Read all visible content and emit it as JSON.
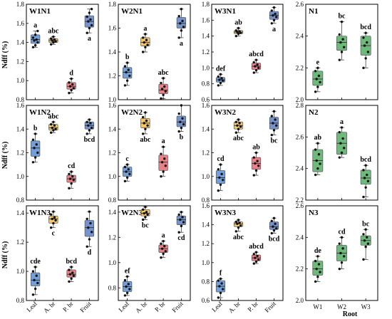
{
  "figure": {
    "y_axis_label": "Ndff (%)",
    "x_axis_label": "Root",
    "colors": {
      "Leaf": "#3d7cc9",
      "A. br": "#f0b030",
      "P. br": "#e0505a",
      "Fruit": "#3e6ab8",
      "W1": "#35a048",
      "W2": "#35a048",
      "W3": "#35a048"
    }
  },
  "chart_data": [
    {
      "type": "box",
      "title": "W1N1",
      "categories": [
        "Leaf",
        "A. br",
        "P. br",
        "Fruit"
      ],
      "ylim": [
        0.8,
        1.8
      ],
      "yticks": [
        "0.8",
        "1.0",
        "1.2",
        "1.4",
        "1.6",
        "1.8"
      ],
      "boxes": [
        {
          "q1": 1.39,
          "median": 1.43,
          "q3": 1.48,
          "whisker_low": 1.35,
          "whisker_high": 1.52,
          "letters": "a",
          "points": [
            1.35,
            1.37,
            1.4,
            1.42,
            1.43,
            1.45,
            1.48,
            1.52
          ]
        },
        {
          "q1": 1.4,
          "median": 1.42,
          "q3": 1.44,
          "whisker_low": 1.38,
          "whisker_high": 1.46,
          "letters": "abc",
          "points": [
            1.38,
            1.4,
            1.41,
            1.42,
            1.43,
            1.44,
            1.46
          ]
        },
        {
          "q1": 0.91,
          "median": 0.94,
          "q3": 0.98,
          "whisker_low": 0.87,
          "whisker_high": 1.02,
          "letters": "d",
          "points": [
            0.87,
            0.9,
            0.92,
            0.94,
            0.96,
            0.98,
            1.02
          ]
        },
        {
          "q1": 1.56,
          "median": 1.62,
          "q3": 1.68,
          "whisker_low": 1.5,
          "whisker_high": 1.75,
          "letters": "a",
          "points": [
            1.5,
            1.55,
            1.58,
            1.62,
            1.64,
            1.67,
            1.71,
            1.75
          ]
        }
      ]
    },
    {
      "type": "box",
      "title": "W2N1",
      "categories": [
        "Leaf",
        "A. br",
        "P. br",
        "Fruit"
      ],
      "ylim": [
        1.0,
        1.8
      ],
      "yticks": [
        "1.0",
        "1.2",
        "1.4",
        "1.6",
        "1.8"
      ],
      "boxes": [
        {
          "q1": 1.18,
          "median": 1.23,
          "q3": 1.27,
          "whisker_low": 1.12,
          "whisker_high": 1.31,
          "letters": "b",
          "points": [
            1.12,
            1.16,
            1.2,
            1.23,
            1.25,
            1.28,
            1.31
          ]
        },
        {
          "q1": 1.45,
          "median": 1.48,
          "q3": 1.52,
          "whisker_low": 1.4,
          "whisker_high": 1.55,
          "letters": "a",
          "points": [
            1.4,
            1.44,
            1.46,
            1.48,
            1.5,
            1.52,
            1.55
          ]
        },
        {
          "q1": 1.05,
          "median": 1.08,
          "q3": 1.13,
          "whisker_low": 1.01,
          "whisker_high": 1.18,
          "letters": "abc",
          "points": [
            1.01,
            1.04,
            1.07,
            1.09,
            1.11,
            1.14,
            1.18
          ]
        },
        {
          "q1": 1.6,
          "median": 1.64,
          "q3": 1.69,
          "whisker_low": 1.52,
          "whisker_high": 1.76,
          "letters": "a",
          "points": [
            1.52,
            1.58,
            1.61,
            1.64,
            1.66,
            1.7,
            1.76
          ]
        }
      ]
    },
    {
      "type": "box",
      "title": "W3N1",
      "categories": [
        "Leaf",
        "A. br",
        "P. br",
        "Fruit"
      ],
      "ylim": [
        0.6,
        1.8
      ],
      "yticks": [
        "0.6",
        "0.8",
        "1.0",
        "1.2",
        "1.4",
        "1.6",
        "1.8"
      ],
      "boxes": [
        {
          "q1": 0.82,
          "median": 0.85,
          "q3": 0.88,
          "whisker_low": 0.78,
          "whisker_high": 0.92,
          "letters": "def",
          "points": [
            0.78,
            0.81,
            0.84,
            0.85,
            0.87,
            0.89,
            0.92
          ]
        },
        {
          "q1": 1.43,
          "median": 1.45,
          "q3": 1.47,
          "whisker_low": 1.4,
          "whisker_high": 1.5,
          "letters": "ab",
          "points": [
            1.4,
            1.43,
            1.44,
            1.45,
            1.46,
            1.47,
            1.5
          ]
        },
        {
          "q1": 0.98,
          "median": 1.02,
          "q3": 1.06,
          "whisker_low": 0.94,
          "whisker_high": 1.1,
          "letters": "abcd",
          "points": [
            0.94,
            0.97,
            1.0,
            1.02,
            1.04,
            1.07,
            1.1
          ]
        },
        {
          "q1": 1.61,
          "median": 1.66,
          "q3": 1.71,
          "whisker_low": 1.56,
          "whisker_high": 1.76,
          "letters": "a",
          "points": [
            1.56,
            1.6,
            1.64,
            1.66,
            1.68,
            1.72,
            1.76
          ]
        }
      ]
    },
    {
      "type": "box",
      "title": "N1",
      "categories": [
        "W1",
        "W2",
        "W3"
      ],
      "ylim": [
        2.0,
        2.6
      ],
      "yticks": [
        "2.0",
        "2.2",
        "2.4",
        "2.6"
      ],
      "boxes": [
        {
          "q1": 2.09,
          "median": 2.13,
          "q3": 2.18,
          "whisker_low": 2.05,
          "whisker_high": 2.2,
          "letters": "e",
          "points": [
            2.05,
            2.08,
            2.11,
            2.13,
            2.15,
            2.18,
            2.2
          ]
        },
        {
          "q1": 2.31,
          "median": 2.36,
          "q3": 2.4,
          "whisker_low": 2.25,
          "whisker_high": 2.49,
          "letters": "bc",
          "points": [
            2.25,
            2.3,
            2.33,
            2.36,
            2.38,
            2.41,
            2.49
          ]
        },
        {
          "q1": 2.28,
          "median": 2.34,
          "q3": 2.4,
          "whisker_low": 2.2,
          "whisker_high": 2.42,
          "letters": "bcd",
          "points": [
            2.2,
            2.26,
            2.3,
            2.34,
            2.36,
            2.39,
            2.42
          ]
        }
      ]
    },
    {
      "type": "box",
      "title": "W1N2",
      "categories": [
        "Leaf",
        "A. br",
        "P. br",
        "Fruit"
      ],
      "ylim": [
        0.8,
        1.6
      ],
      "yticks": [
        "0.8",
        "1.0",
        "1.2",
        "1.4",
        "1.6"
      ],
      "boxes": [
        {
          "q1": 1.17,
          "median": 1.24,
          "q3": 1.3,
          "whisker_low": 1.12,
          "whisker_high": 1.36,
          "letters": "b",
          "points": [
            1.12,
            1.16,
            1.2,
            1.24,
            1.27,
            1.31,
            1.36
          ]
        },
        {
          "q1": 1.39,
          "median": 1.41,
          "q3": 1.44,
          "whisker_low": 1.37,
          "whisker_high": 1.46,
          "letters": "abc",
          "points": [
            1.37,
            1.39,
            1.4,
            1.41,
            1.43,
            1.44,
            1.46
          ]
        },
        {
          "q1": 0.95,
          "median": 0.98,
          "q3": 1.01,
          "whisker_low": 0.9,
          "whisker_high": 1.04,
          "letters": "cd",
          "points": [
            0.9,
            0.94,
            0.97,
            0.98,
            1.0,
            1.02,
            1.04
          ]
        },
        {
          "q1": 1.4,
          "median": 1.43,
          "q3": 1.46,
          "whisker_low": 1.36,
          "whisker_high": 1.48,
          "letters": "bcd",
          "points": [
            1.36,
            1.39,
            1.41,
            1.43,
            1.45,
            1.46,
            1.48
          ]
        }
      ]
    },
    {
      "type": "box",
      "title": "W2N2",
      "categories": [
        "Leaf",
        "A. br",
        "P. br",
        "Fruit"
      ],
      "ylim": [
        0.8,
        1.6
      ],
      "yticks": [
        "0.8",
        "1.0",
        "1.2",
        "1.4",
        "1.6"
      ],
      "boxes": [
        {
          "q1": 1.0,
          "median": 1.04,
          "q3": 1.08,
          "whisker_low": 0.96,
          "whisker_high": 1.1,
          "letters": "c",
          "points": [
            0.96,
            0.99,
            1.02,
            1.04,
            1.06,
            1.08,
            1.1
          ]
        },
        {
          "q1": 1.41,
          "median": 1.45,
          "q3": 1.49,
          "whisker_low": 1.36,
          "whisker_high": 1.54,
          "letters": "abc",
          "points": [
            1.36,
            1.4,
            1.43,
            1.45,
            1.47,
            1.5,
            1.54
          ]
        },
        {
          "q1": 1.05,
          "median": 1.12,
          "q3": 1.18,
          "whisker_low": 1.0,
          "whisker_high": 1.25,
          "letters": "a",
          "points": [
            1.0,
            1.04,
            1.09,
            1.12,
            1.15,
            1.19,
            1.25
          ]
        },
        {
          "q1": 1.42,
          "median": 1.46,
          "q3": 1.51,
          "whisker_low": 1.38,
          "whisker_high": 1.6,
          "letters": "b",
          "points": [
            1.38,
            1.41,
            1.44,
            1.46,
            1.49,
            1.53,
            1.6
          ]
        }
      ]
    },
    {
      "type": "box",
      "title": "W3N2",
      "categories": [
        "Leaf",
        "A. br",
        "P. br",
        "Fruit"
      ],
      "ylim": [
        0.8,
        1.6
      ],
      "yticks": [
        "0.8",
        "1.0",
        "1.2",
        "1.4",
        "1.6"
      ],
      "boxes": [
        {
          "q1": 0.94,
          "median": 0.99,
          "q3": 1.05,
          "whisker_low": 0.88,
          "whisker_high": 1.1,
          "letters": "cd",
          "points": [
            0.88,
            0.93,
            0.97,
            0.99,
            1.02,
            1.06,
            1.1
          ]
        },
        {
          "q1": 1.4,
          "median": 1.43,
          "q3": 1.46,
          "whisker_low": 1.37,
          "whisker_high": 1.48,
          "letters": "abc",
          "points": [
            1.37,
            1.4,
            1.42,
            1.43,
            1.45,
            1.46,
            1.48
          ]
        },
        {
          "q1": 1.06,
          "median": 1.11,
          "q3": 1.16,
          "whisker_low": 1.01,
          "whisker_high": 1.2,
          "letters": "ab",
          "points": [
            1.01,
            1.05,
            1.09,
            1.11,
            1.13,
            1.16,
            1.2
          ]
        },
        {
          "q1": 1.4,
          "median": 1.45,
          "q3": 1.5,
          "whisker_low": 1.35,
          "whisker_high": 1.55,
          "letters": "bc",
          "points": [
            1.35,
            1.39,
            1.43,
            1.45,
            1.48,
            1.51,
            1.55
          ]
        }
      ]
    },
    {
      "type": "box",
      "title": "N2",
      "categories": [
        "W1",
        "W2",
        "W3"
      ],
      "ylim": [
        2.2,
        2.8
      ],
      "yticks": [
        "2.2",
        "2.4",
        "2.6",
        "2.8"
      ],
      "boxes": [
        {
          "q1": 2.38,
          "median": 2.45,
          "q3": 2.52,
          "whisker_low": 2.36,
          "whisker_high": 2.56,
          "letters": "ab",
          "points": [
            2.36,
            2.4,
            2.43,
            2.45,
            2.49,
            2.52,
            2.56
          ]
        },
        {
          "q1": 2.49,
          "median": 2.56,
          "q3": 2.63,
          "whisker_low": 2.47,
          "whisker_high": 2.66,
          "letters": "a",
          "points": [
            2.47,
            2.5,
            2.53,
            2.56,
            2.59,
            2.63,
            2.66
          ]
        },
        {
          "q1": 2.3,
          "median": 2.34,
          "q3": 2.39,
          "whisker_low": 2.22,
          "whisker_high": 2.42,
          "letters": "bcd",
          "points": [
            2.22,
            2.28,
            2.32,
            2.34,
            2.36,
            2.39,
            2.42
          ]
        }
      ]
    },
    {
      "type": "box",
      "title": "W1N3",
      "categories": [
        "Leaf",
        "A. br",
        "P. br",
        "Fruit"
      ],
      "ylim": [
        0.8,
        1.45
      ],
      "yticks": [
        "0.8",
        "1.0",
        "1.2",
        "1.4"
      ],
      "boxes": [
        {
          "q1": 0.9,
          "median": 0.94,
          "q3": 0.99,
          "whisker_low": 0.84,
          "whisker_high": 1.03,
          "letters": "cde",
          "points": [
            0.84,
            0.88,
            0.92,
            0.94,
            0.97,
            1.0,
            1.03
          ]
        },
        {
          "q1": 1.33,
          "median": 1.36,
          "q3": 1.38,
          "whisker_low": 1.3,
          "whisker_high": 1.41,
          "letters": "c",
          "points": [
            1.3,
            1.33,
            1.35,
            1.36,
            1.37,
            1.39,
            1.41
          ]
        },
        {
          "q1": 0.96,
          "median": 0.98,
          "q3": 1.01,
          "whisker_low": 0.93,
          "whisker_high": 1.03,
          "letters": "bcd",
          "points": [
            0.93,
            0.95,
            0.97,
            0.98,
            0.99,
            1.01,
            1.03
          ]
        },
        {
          "q1": 1.24,
          "median": 1.3,
          "q3": 1.35,
          "whisker_low": 1.17,
          "whisker_high": 1.41,
          "letters": "d",
          "points": [
            1.17,
            1.22,
            1.27,
            1.3,
            1.33,
            1.36,
            1.41
          ]
        }
      ]
    },
    {
      "type": "box",
      "title": "W2N3",
      "categories": [
        "Leaf",
        "A. br",
        "P. br",
        "Fruit"
      ],
      "ylim": [
        0.7,
        1.45
      ],
      "yticks": [
        "0.8",
        "1.0",
        "1.2",
        "1.4"
      ],
      "boxes": [
        {
          "q1": 0.77,
          "median": 0.81,
          "q3": 0.85,
          "whisker_low": 0.74,
          "whisker_high": 0.89,
          "letters": "ef",
          "points": [
            0.74,
            0.76,
            0.79,
            0.81,
            0.83,
            0.86,
            0.89
          ]
        },
        {
          "q1": 1.37,
          "median": 1.39,
          "q3": 1.42,
          "whisker_low": 1.34,
          "whisker_high": 1.44,
          "letters": "bc",
          "points": [
            1.34,
            1.36,
            1.38,
            1.39,
            1.4,
            1.42,
            1.44
          ]
        },
        {
          "q1": 1.08,
          "median": 1.11,
          "q3": 1.14,
          "whisker_low": 1.04,
          "whisker_high": 1.17,
          "letters": "a",
          "points": [
            1.04,
            1.07,
            1.09,
            1.11,
            1.13,
            1.15,
            1.17
          ]
        },
        {
          "q1": 1.3,
          "median": 1.34,
          "q3": 1.37,
          "whisker_low": 1.24,
          "whisker_high": 1.4,
          "letters": "cd",
          "points": [
            1.24,
            1.29,
            1.32,
            1.34,
            1.36,
            1.38,
            1.4
          ]
        }
      ]
    },
    {
      "type": "box",
      "title": "W3N3",
      "categories": [
        "Leaf",
        "A. br",
        "P. br",
        "Fruit"
      ],
      "ylim": [
        0.6,
        1.6
      ],
      "yticks": [
        "0.6",
        "0.8",
        "1.0",
        "1.2",
        "1.4",
        "1.6"
      ],
      "boxes": [
        {
          "q1": 0.69,
          "median": 0.75,
          "q3": 0.81,
          "whisker_low": 0.63,
          "whisker_high": 0.83,
          "letters": "f",
          "points": [
            0.63,
            0.68,
            0.72,
            0.75,
            0.78,
            0.81,
            0.83
          ]
        },
        {
          "q1": 1.38,
          "median": 1.41,
          "q3": 1.43,
          "whisker_low": 1.33,
          "whisker_high": 1.45,
          "letters": "abc",
          "points": [
            1.33,
            1.37,
            1.39,
            1.41,
            1.42,
            1.43,
            1.45
          ]
        },
        {
          "q1": 1.02,
          "median": 1.05,
          "q3": 1.08,
          "whisker_low": 0.99,
          "whisker_high": 1.11,
          "letters": "abcd",
          "points": [
            0.99,
            1.01,
            1.03,
            1.05,
            1.07,
            1.09,
            1.11
          ]
        },
        {
          "q1": 1.35,
          "median": 1.38,
          "q3": 1.43,
          "whisker_low": 1.31,
          "whisker_high": 1.47,
          "letters": "bcd",
          "points": [
            1.31,
            1.34,
            1.36,
            1.38,
            1.41,
            1.44,
            1.47
          ]
        }
      ]
    },
    {
      "type": "box",
      "title": "N3",
      "categories": [
        "W1",
        "W2",
        "W3"
      ],
      "ylim": [
        2.0,
        2.6
      ],
      "yticks": [
        "2.0",
        "2.2",
        "2.4",
        "2.6"
      ],
      "boxes": [
        {
          "q1": 2.16,
          "median": 2.2,
          "q3": 2.25,
          "whisker_low": 2.12,
          "whisker_high": 2.28,
          "letters": "de",
          "points": [
            2.12,
            2.15,
            2.18,
            2.2,
            2.23,
            2.25,
            2.28
          ]
        },
        {
          "q1": 2.25,
          "median": 2.3,
          "q3": 2.35,
          "whisker_low": 2.2,
          "whisker_high": 2.4,
          "letters": "cd",
          "points": [
            2.2,
            2.24,
            2.28,
            2.3,
            2.33,
            2.36,
            2.4
          ]
        },
        {
          "q1": 2.35,
          "median": 2.38,
          "q3": 2.41,
          "whisker_low": 2.26,
          "whisker_high": 2.45,
          "letters": "bc",
          "points": [
            2.26,
            2.34,
            2.36,
            2.38,
            2.4,
            2.42,
            2.45
          ]
        }
      ]
    }
  ]
}
